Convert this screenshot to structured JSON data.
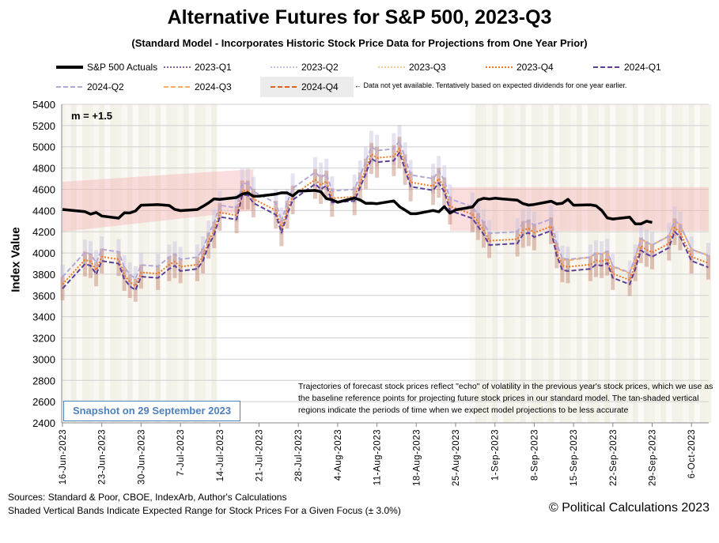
{
  "title": "Alternative Futures for S&P 500, 2023-Q3",
  "subtitle": "(Standard Model - Incorporates Historic Stock Price Data for Projections from One Year Prior)",
  "legend": {
    "items": [
      {
        "label": "S&P 500 Actuals",
        "color": "#000000",
        "style": "solid"
      },
      {
        "label": "2023-Q1",
        "color": "#8064a2",
        "style": "dotted"
      },
      {
        "label": "2023-Q2",
        "color": "#c5bfe0",
        "style": "dotted"
      },
      {
        "label": "2023-Q3",
        "color": "#fcc88a",
        "style": "dotted"
      },
      {
        "label": "2023-Q4",
        "color": "#f07820",
        "style": "dotted"
      },
      {
        "label": "2024-Q1",
        "color": "#5b3f98",
        "style": "dashed"
      },
      {
        "label": "2024-Q2",
        "color": "#b4a8d8",
        "style": "dashed"
      },
      {
        "label": "2024-Q3",
        "color": "#fbb060",
        "style": "dashed"
      },
      {
        "label": "2024-Q4",
        "color": "#e0601a",
        "style": "dashed"
      }
    ],
    "note": "← Data not yet available. Tentatively based on expected dividends for one year earlier."
  },
  "annotation_m": "m = +1.5",
  "note_text": "Trajectories of forecast stock prices reflect \"echo\" of volatility in  the previous year's stock prices, which we use as the baseline reference points for projecting future stock prices in our standard model.  The tan-shaded vertical regions indicate the periods of time when we expect model projections to be less accurate",
  "snapshot": "Snapshot on 29 September 2023",
  "footer": {
    "sources": "Sources: Standard & Poor, CBOE, IndexArb, Author's Calculations",
    "bands": "Shaded Vertical Bands Indicate Expected Range for Stock Prices For a Given Focus (± 3.0%)",
    "copyright": "© Political Calculations 2023"
  },
  "chart_data": {
    "type": "line",
    "ylabel": "Index Value",
    "ylim": [
      2400,
      5400
    ],
    "yticks": [
      2400,
      2600,
      2800,
      3000,
      3200,
      3400,
      3600,
      3800,
      4000,
      4200,
      4400,
      4600,
      4800,
      5000,
      5200,
      5400
    ],
    "xlim": [
      "2023-06-16",
      "2023-10-10"
    ],
    "xtick_dates": [
      "2023-06-16",
      "2023-06-23",
      "2023-06-30",
      "2023-07-07",
      "2023-07-14",
      "2023-07-21",
      "2023-07-28",
      "2023-08-04",
      "2023-08-11",
      "2023-08-18",
      "2023-08-25",
      "2023-09-01",
      "2023-09-08",
      "2023-09-15",
      "2023-09-22",
      "2023-09-29",
      "2023-10-06"
    ],
    "xtick_labels": [
      "16-Jun-2023",
      "23-Jun-2023",
      "30-Jun-2023",
      "7-Jul-2023",
      "14-Jul-2023",
      "21-Jul-2023",
      "28-Jul-2023",
      "4-Aug-2023",
      "11-Aug-2023",
      "18-Aug-2023",
      "25-Aug-2023",
      "1-Sep-2023",
      "8-Sep-2023",
      "15-Sep-2023",
      "22-Sep-2023",
      "29-Sep-2023",
      "6-Oct-2023"
    ],
    "grid": true,
    "legend_placement": "top",
    "error_band_pct": 3.0,
    "actuals": {
      "name": "S&P 500 Actuals",
      "dates": [
        "2023-06-16",
        "2023-06-20",
        "2023-06-21",
        "2023-06-22",
        "2023-06-23",
        "2023-06-26",
        "2023-06-27",
        "2023-06-28",
        "2023-06-29",
        "2023-06-30",
        "2023-07-03",
        "2023-07-05",
        "2023-07-06",
        "2023-07-07",
        "2023-07-10",
        "2023-07-11",
        "2023-07-12",
        "2023-07-13",
        "2023-07-14",
        "2023-07-17",
        "2023-07-18",
        "2023-07-19",
        "2023-07-20",
        "2023-07-21",
        "2023-07-24",
        "2023-07-25",
        "2023-07-26",
        "2023-07-27",
        "2023-07-28",
        "2023-07-31",
        "2023-08-01",
        "2023-08-02",
        "2023-08-03",
        "2023-08-04",
        "2023-08-07",
        "2023-08-08",
        "2023-08-09",
        "2023-08-10",
        "2023-08-11",
        "2023-08-14",
        "2023-08-15",
        "2023-08-16",
        "2023-08-17",
        "2023-08-18",
        "2023-08-21",
        "2023-08-22",
        "2023-08-23",
        "2023-08-24",
        "2023-08-25",
        "2023-08-28",
        "2023-08-29",
        "2023-08-30",
        "2023-08-31",
        "2023-09-01",
        "2023-09-05",
        "2023-09-06",
        "2023-09-07",
        "2023-09-08",
        "2023-09-11",
        "2023-09-12",
        "2023-09-13",
        "2023-09-14",
        "2023-09-15",
        "2023-09-18",
        "2023-09-19",
        "2023-09-20",
        "2023-09-21",
        "2023-09-22",
        "2023-09-25",
        "2023-09-26",
        "2023-09-27",
        "2023-09-28",
        "2023-09-29"
      ],
      "values": [
        4410,
        4389,
        4366,
        4382,
        4348,
        4328,
        4378,
        4377,
        4396,
        4450,
        4455,
        4447,
        4411,
        4399,
        4409,
        4439,
        4472,
        4510,
        4505,
        4522,
        4555,
        4566,
        4535,
        4536,
        4554,
        4567,
        4566,
        4537,
        4582,
        4589,
        4577,
        4513,
        4501,
        4478,
        4518,
        4499,
        4468,
        4469,
        4464,
        4490,
        4437,
        4404,
        4370,
        4370,
        4400,
        4388,
        4436,
        4376,
        4406,
        4433,
        4497,
        4515,
        4508,
        4516,
        4497,
        4465,
        4451,
        4457,
        4487,
        4462,
        4468,
        4505,
        4450,
        4454,
        4444,
        4402,
        4330,
        4320,
        4337,
        4274,
        4274,
        4300,
        4288
      ]
    },
    "projection_dates": [
      "2023-06-16",
      "2023-06-20",
      "2023-06-21",
      "2023-06-22",
      "2023-06-23",
      "2023-06-26",
      "2023-06-27",
      "2023-06-28",
      "2023-06-29",
      "2023-06-30",
      "2023-07-03",
      "2023-07-05",
      "2023-07-06",
      "2023-07-07",
      "2023-07-10",
      "2023-07-11",
      "2023-07-12",
      "2023-07-13",
      "2023-07-14",
      "2023-07-17",
      "2023-07-18",
      "2023-07-19",
      "2023-07-20",
      "2023-07-24",
      "2023-07-25",
      "2023-07-26",
      "2023-07-27",
      "2023-07-31",
      "2023-08-01",
      "2023-08-02",
      "2023-08-03",
      "2023-08-07",
      "2023-08-08",
      "2023-08-09",
      "2023-08-10",
      "2023-08-11",
      "2023-08-14",
      "2023-08-15",
      "2023-08-16",
      "2023-08-17",
      "2023-08-21",
      "2023-08-22",
      "2023-08-23",
      "2023-08-24",
      "2023-08-28",
      "2023-08-29",
      "2023-08-30",
      "2023-08-31",
      "2023-09-05",
      "2023-09-06",
      "2023-09-07",
      "2023-09-08",
      "2023-09-11",
      "2023-09-12",
      "2023-09-13",
      "2023-09-14",
      "2023-09-18",
      "2023-09-19",
      "2023-09-20",
      "2023-09-21",
      "2023-09-22",
      "2023-09-25",
      "2023-09-26",
      "2023-09-27",
      "2023-09-28",
      "2023-09-29",
      "2023-10-02",
      "2023-10-03",
      "2023-10-04",
      "2023-10-06",
      "2023-10-09"
    ],
    "series": [
      {
        "name": "2024-Q2",
        "color": "#b4a8d8",
        "style": "dashed",
        "values": [
          3775,
          4006,
          3990,
          3910,
          4035,
          4010,
          3865,
          3797,
          3760,
          3887,
          3875,
          3960,
          3990,
          3940,
          3960,
          4035,
          4180,
          4280,
          4450,
          4425,
          4655,
          4655,
          4580,
          4470,
          4300,
          4470,
          4610,
          4760,
          4710,
          4745,
          4585,
          4600,
          4730,
          4855,
          5000,
          4965,
          4980,
          5055,
          4895,
          4735,
          4700,
          4770,
          4685,
          4510,
          4435,
          4360,
          4285,
          4185,
          4200,
          4285,
          4300,
          4260,
          4320,
          4085,
          3950,
          3940,
          3960,
          4000,
          3990,
          4015,
          3875,
          3815,
          3960,
          4135,
          4100,
          4075,
          4160,
          4310,
          4260,
          4035,
          3975
        ]
      },
      {
        "name": "2023-Q4",
        "color": "#f07820",
        "style": "dotted",
        "values": [
          3705,
          3936,
          3920,
          3840,
          3965,
          3940,
          3795,
          3727,
          3690,
          3817,
          3805,
          3890,
          3920,
          3870,
          3890,
          3965,
          4110,
          4210,
          4380,
          4355,
          4585,
          4585,
          4510,
          4400,
          4230,
          4400,
          4540,
          4690,
          4640,
          4675,
          4515,
          4530,
          4660,
          4785,
          4930,
          4895,
          4910,
          4985,
          4825,
          4665,
          4630,
          4700,
          4615,
          4440,
          4365,
          4290,
          4215,
          4115,
          4130,
          4215,
          4230,
          4190,
          4250,
          4015,
          3880,
          3870,
          3890,
          3930,
          3920,
          3945,
          3805,
          3745,
          3890,
          4065,
          4030,
          4005,
          4090,
          4240,
          4190,
          3965,
          3905
        ]
      },
      {
        "name": "2024-Q1",
        "color": "#5b3f98",
        "style": "dashed",
        "values": [
          3665,
          3896,
          3880,
          3800,
          3925,
          3900,
          3755,
          3687,
          3650,
          3777,
          3765,
          3850,
          3880,
          3830,
          3850,
          3925,
          4070,
          4170,
          4340,
          4315,
          4545,
          4545,
          4470,
          4360,
          4190,
          4360,
          4500,
          4650,
          4600,
          4635,
          4475,
          4490,
          4620,
          4745,
          4890,
          4855,
          4870,
          4945,
          4785,
          4625,
          4590,
          4660,
          4575,
          4400,
          4325,
          4250,
          4175,
          4075,
          4090,
          4175,
          4190,
          4150,
          4210,
          3975,
          3840,
          3830,
          3850,
          3890,
          3880,
          3905,
          3765,
          3705,
          3850,
          4025,
          3990,
          3965,
          4050,
          4200,
          4150,
          3925,
          3865
        ]
      }
    ],
    "series_2024_q3": {
      "name": "2024-Q3",
      "color": "#fbb060",
      "style": "dashed",
      "dates": [
        "2023-09-13",
        "2023-09-14",
        "2023-09-18",
        "2023-09-19",
        "2023-09-20",
        "2023-09-21",
        "2023-09-22",
        "2023-09-25",
        "2023-09-26",
        "2023-09-27",
        "2023-09-28",
        "2023-09-29",
        "2023-10-02",
        "2023-10-03",
        "2023-10-04",
        "2023-10-06",
        "2023-10-09"
      ],
      "values": [
        3940,
        3930,
        3960,
        4000,
        3990,
        4015,
        3870,
        3810,
        3960,
        4135,
        4100,
        4075,
        4160,
        4310,
        4260,
        4035,
        3975
      ]
    },
    "expected_range_bands": [
      {
        "start": "2023-06-16",
        "end": "2023-07-20",
        "low": [
          4200,
          4400
        ],
        "high": [
          4670,
          4790
        ]
      },
      {
        "start": "2023-08-24",
        "end": "2023-10-10",
        "low": [
          4210,
          4210
        ],
        "high": [
          4620,
          4620
        ]
      }
    ],
    "less_accurate_periods": [
      {
        "start": "2023-06-16",
        "end": "2023-07-14"
      },
      {
        "start": "2023-08-28",
        "end": "2023-10-10"
      }
    ]
  }
}
